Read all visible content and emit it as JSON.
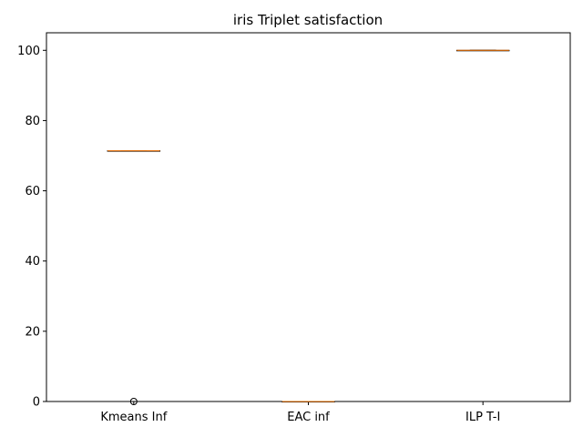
{
  "chart_data": {
    "type": "box",
    "title": "iris Triplet satisfaction",
    "xlabel": "",
    "ylabel": "",
    "ylim": [
      0,
      105
    ],
    "yticks": [
      0,
      20,
      40,
      60,
      80,
      100
    ],
    "ytick_labels": [
      "0",
      "20",
      "40",
      "60",
      "80",
      "100"
    ],
    "categories": [
      "Kmeans Inf",
      "EAC inf",
      "ILP T-I"
    ],
    "boxes": [
      {
        "q1": 71.4,
        "median": 71.4,
        "q3": 71.4,
        "whisker_low": 71.4,
        "whisker_high": 71.4,
        "outliers": [
          0
        ]
      },
      {
        "q1": 0,
        "median": 0,
        "q3": 0,
        "whisker_low": 0,
        "whisker_high": 0,
        "outliers": []
      },
      {
        "q1": 100,
        "median": 100,
        "q3": 100,
        "whisker_low": 100,
        "whisker_high": 100,
        "outliers": []
      }
    ],
    "colors": {
      "box": "#000000",
      "median": "#ff7f0e",
      "axis": "#000000"
    },
    "grid": false
  }
}
